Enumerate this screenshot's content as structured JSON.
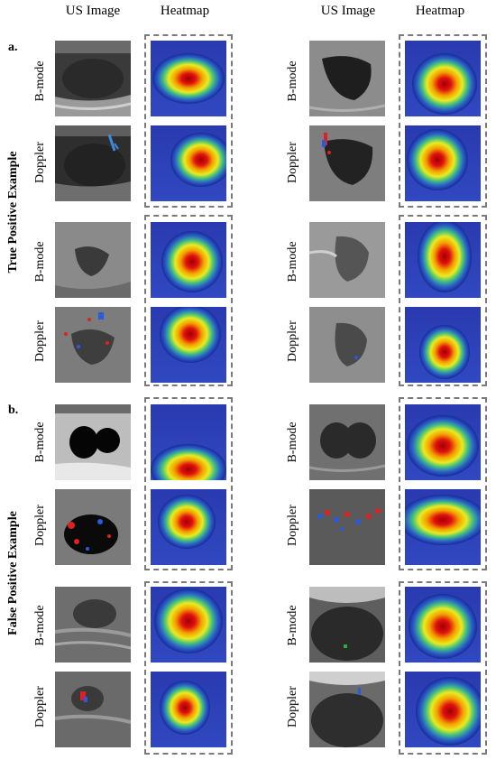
{
  "headers": {
    "us_image": "US Image",
    "heatmap": "Heatmap"
  },
  "panels": {
    "a": "a.",
    "b": "b."
  },
  "sections": {
    "true_positive": "True Positive Example",
    "false_positive": "False Positive Example"
  },
  "modes": {
    "bmode": "B-mode",
    "doppler": "Doppler"
  }
}
